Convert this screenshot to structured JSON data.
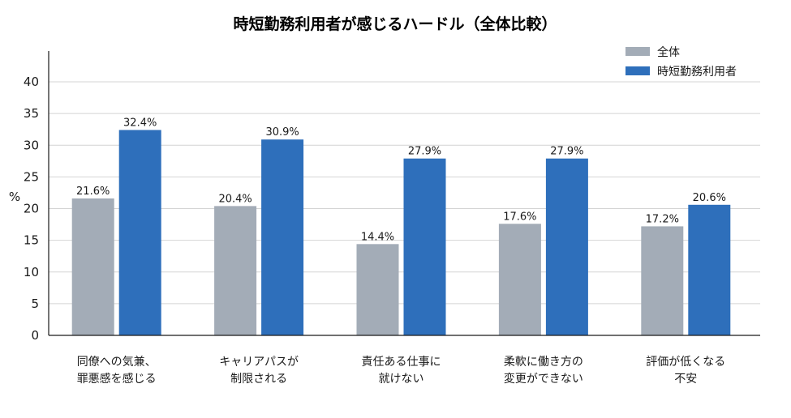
{
  "chart_data": {
    "type": "bar",
    "title": "時短勤務利用者が感じるハードル（全体比較）",
    "ylabel": "%",
    "xlabel": "",
    "ylim": [
      0,
      40
    ],
    "yticks": [
      0,
      5,
      10,
      15,
      20,
      25,
      30,
      35,
      40
    ],
    "grid": true,
    "legend_position": "top-right",
    "categories": [
      [
        "同僚への気兼、",
        "罪悪感を感じる"
      ],
      [
        "キャリアパスが",
        "制限される"
      ],
      [
        "責任ある仕事に",
        "就けない"
      ],
      [
        "柔軟に働き方の",
        "変更ができない"
      ],
      [
        "評価が低くなる",
        "不安"
      ]
    ],
    "series": [
      {
        "name": "全体",
        "color": "#a3acb7",
        "values": [
          21.6,
          20.4,
          14.4,
          17.6,
          17.2
        ],
        "labels": [
          "21.6%",
          "20.4%",
          "14.4%",
          "17.6%",
          "17.2%"
        ]
      },
      {
        "name": "時短勤務利用者",
        "color": "#2e6fbb",
        "values": [
          32.4,
          30.9,
          27.9,
          27.9,
          20.6
        ],
        "labels": [
          "32.4%",
          "30.9%",
          "27.9%",
          "27.9%",
          "20.6%"
        ]
      }
    ]
  }
}
